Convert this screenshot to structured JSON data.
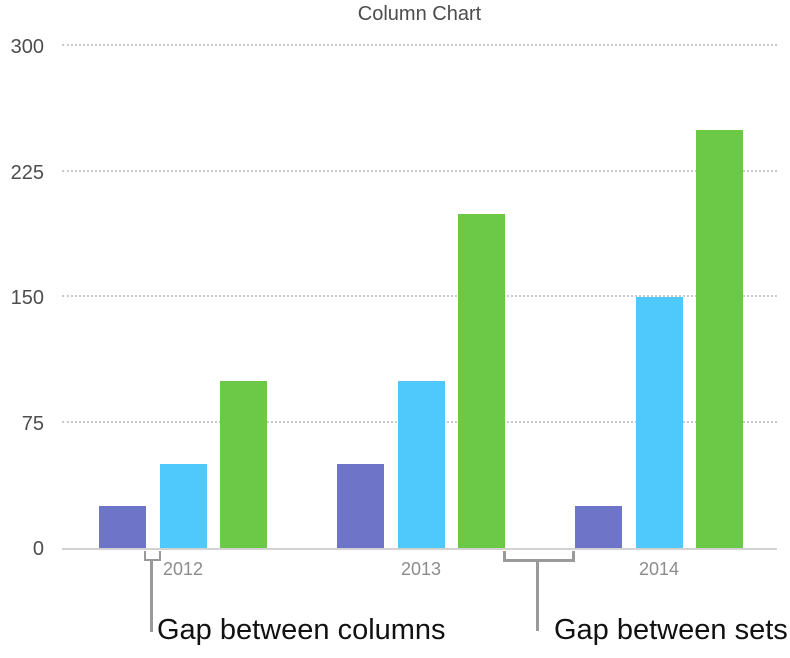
{
  "chart_data": {
    "type": "bar",
    "title": "Column Chart",
    "categories": [
      "2012",
      "2013",
      "2014"
    ],
    "series": [
      {
        "color": "#6e74c7",
        "values": [
          25,
          50,
          25
        ]
      },
      {
        "color": "#4fc8fb",
        "values": [
          50,
          100,
          150
        ]
      },
      {
        "color": "#6cc847",
        "values": [
          100,
          200,
          250
        ]
      }
    ],
    "y_ticks": [
      300,
      225,
      150,
      75,
      0
    ],
    "ylim": [
      0,
      300
    ],
    "xlabel": "",
    "ylabel": "",
    "grid": "horizontal-dotted",
    "legend_position": "none"
  },
  "annotations": {
    "gap_between_columns": "Gap between columns",
    "gap_between_sets": "Gap between sets"
  },
  "colors": {
    "title_text": "#4c4c4c",
    "axis_tick_text": "#4d4d4d",
    "category_text": "#8c8c8c",
    "gridline": "#c9c9c9",
    "baseline": "#d2d2d2",
    "bracket": "#9a9a9a",
    "annotation_text": "#111111",
    "series_purple": "#6e74c7",
    "series_cyan": "#4fc8fb",
    "series_green": "#6cc847"
  }
}
